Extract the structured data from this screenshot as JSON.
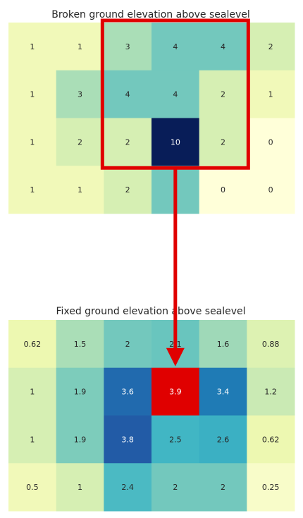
{
  "chart_data": [
    {
      "type": "heatmap",
      "title": "Broken ground elevation above sealevel",
      "rows": [
        [
          1,
          1,
          3,
          4,
          4,
          2
        ],
        [
          1,
          3,
          4,
          4,
          2,
          1
        ],
        [
          1,
          2,
          2,
          10,
          2,
          0
        ],
        [
          1,
          1,
          2,
          4,
          0,
          0
        ]
      ],
      "labels": [
        [
          "1",
          "1",
          "3",
          "4",
          "4",
          "2"
        ],
        [
          "1",
          "3",
          "4",
          "4",
          "2",
          "1"
        ],
        [
          "1",
          "2",
          "2",
          "10",
          "2",
          "0"
        ],
        [
          "1",
          "1",
          "2",
          "",
          "0",
          "0"
        ]
      ],
      "colormap": "YlGnBu",
      "vmin": 0,
      "vmax": 10,
      "highlight_box": {
        "rows": [
          0,
          2
        ],
        "cols": [
          2,
          4
        ],
        "color": "#e00000"
      }
    },
    {
      "type": "heatmap",
      "title": "Fixed ground elevation above sealevel",
      "rows": [
        [
          0.62,
          1.5,
          2,
          2.1,
          1.6,
          0.88
        ],
        [
          1,
          1.9,
          3.6,
          3.9,
          3.4,
          1.2
        ],
        [
          1,
          1.9,
          3.8,
          2.5,
          2.6,
          0.62
        ],
        [
          0.5,
          1,
          2.4,
          2,
          2,
          0.25
        ]
      ],
      "labels": [
        [
          "0.62",
          "1.5",
          "2",
          "2.1",
          "1.6",
          "0.88"
        ],
        [
          "1",
          "1.9",
          "3.6",
          "3.9",
          "3.4",
          "1.2"
        ],
        [
          "1",
          "1.9",
          "3.8",
          "2.5",
          "2.6",
          "0.62"
        ],
        [
          "0.5",
          "1",
          "2.4",
          "2",
          "2",
          "0.25"
        ]
      ],
      "colormap": "YlGnBu",
      "vmin": 0,
      "vmax": 5,
      "highlight_cell": {
        "row": 1,
        "col": 3,
        "color": "#e00000"
      }
    }
  ],
  "arrow": {
    "color": "#e00000",
    "from_chart": 0,
    "to_chart": 1
  }
}
